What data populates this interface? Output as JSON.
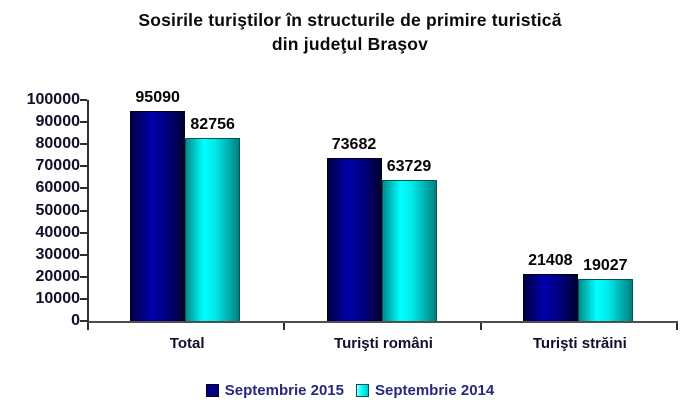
{
  "title": {
    "line1": "Sosirile turiştilor  în structurile de primire turistică",
    "line2": "din judeţul Braşov"
  },
  "chart_data": {
    "type": "bar",
    "title": "Sosirile turiştilor în structurile de primire turistică din judeţul Braşov",
    "categories": [
      "Total",
      "Turişti români",
      "Turişti străini"
    ],
    "series": [
      {
        "name": "Septembrie 2015",
        "color": "#000080",
        "values": [
          95090,
          73682,
          21408
        ]
      },
      {
        "name": "Septembrie 2014",
        "color": "#00e5e5",
        "values": [
          82756,
          63729,
          19027
        ]
      }
    ],
    "ylim": [
      0,
      100000
    ],
    "ytick_step": 10000,
    "ytick_labels": [
      "0",
      "10000",
      "20000",
      "30000",
      "40000",
      "50000",
      "60000",
      "70000",
      "80000",
      "90000",
      "100000"
    ],
    "grid": false,
    "value_labels_shown": true,
    "legend_position": "bottom",
    "xlabel": "",
    "ylabel": ""
  }
}
